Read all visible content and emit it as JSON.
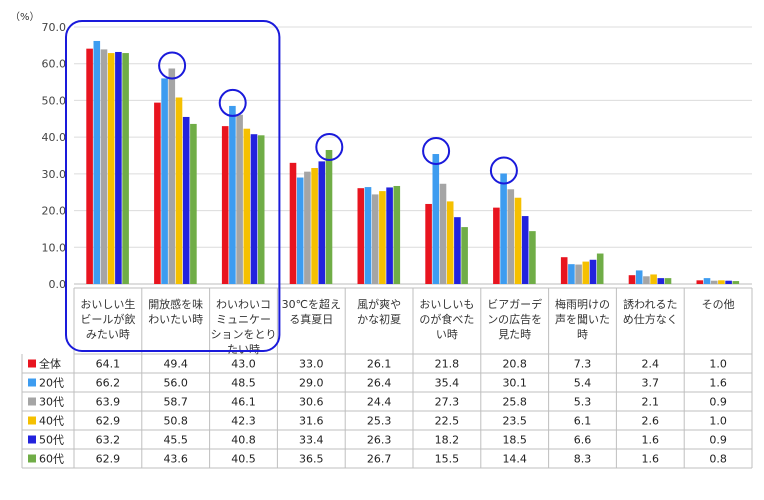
{
  "chart_data": {
    "type": "bar",
    "ylabel": "（%）",
    "ylim": [
      0,
      70
    ],
    "yticks": [
      "0.0",
      "10.0",
      "20.0",
      "30.0",
      "40.0",
      "50.0",
      "60.0",
      "70.0"
    ],
    "grid": true,
    "legend_placement": "table-left",
    "categories": [
      [
        "おいしい生",
        "ビールが飲",
        "みたい時"
      ],
      [
        "開放感を味",
        "わいたい時"
      ],
      [
        "わいわいコ",
        "ミュニケー",
        "ションをとり",
        "たい時"
      ],
      [
        "30℃を超え",
        "る真夏日"
      ],
      [
        "風が爽や",
        "かな初夏"
      ],
      [
        "おいしいも",
        "のが食べた",
        "い時"
      ],
      [
        "ビアガーデ",
        "ンの広告を",
        "見た時"
      ],
      [
        "梅雨明けの",
        "声を聞いた",
        "時"
      ],
      [
        "誘われるた",
        "め仕方なく"
      ],
      [
        "その他"
      ]
    ],
    "series": [
      {
        "name": "全体",
        "color": "#e8141f",
        "values": [
          64.1,
          49.4,
          43.0,
          33.0,
          26.1,
          21.8,
          20.8,
          7.3,
          2.4,
          1.0
        ]
      },
      {
        "name": "20代",
        "color": "#3d9cf0",
        "values": [
          66.2,
          56.0,
          48.5,
          29.0,
          26.4,
          35.4,
          30.1,
          5.4,
          3.7,
          1.6
        ]
      },
      {
        "name": "30代",
        "color": "#a5a5a5",
        "values": [
          63.9,
          58.7,
          46.1,
          30.6,
          24.4,
          27.3,
          25.8,
          5.3,
          2.1,
          0.9
        ]
      },
      {
        "name": "40代",
        "color": "#f5c000",
        "values": [
          62.9,
          50.8,
          42.3,
          31.6,
          25.3,
          22.5,
          23.5,
          6.1,
          2.6,
          1.0
        ]
      },
      {
        "name": "50代",
        "color": "#2222dd",
        "values": [
          63.2,
          45.5,
          40.8,
          33.4,
          26.3,
          18.2,
          18.5,
          6.6,
          1.6,
          0.9
        ]
      },
      {
        "name": "60代",
        "color": "#70ad47",
        "values": [
          62.9,
          43.6,
          40.5,
          36.5,
          26.7,
          15.5,
          14.4,
          8.3,
          1.6,
          0.8
        ]
      }
    ],
    "table_values": [
      [
        "64.1",
        "49.4",
        "43.0",
        "33.0",
        "26.1",
        "21.8",
        "20.8",
        "7.3",
        "2.4",
        "1.0"
      ],
      [
        "66.2",
        "56.0",
        "48.5",
        "29.0",
        "26.4",
        "35.4",
        "30.1",
        "5.4",
        "3.7",
        "1.6"
      ],
      [
        "63.9",
        "58.7",
        "46.1",
        "30.6",
        "24.4",
        "27.3",
        "25.8",
        "5.3",
        "2.1",
        "0.9"
      ],
      [
        "62.9",
        "50.8",
        "42.3",
        "31.6",
        "25.3",
        "22.5",
        "23.5",
        "6.1",
        "2.6",
        "1.0"
      ],
      [
        "63.2",
        "45.5",
        "40.8",
        "33.4",
        "26.3",
        "18.2",
        "18.5",
        "6.6",
        "1.6",
        "0.9"
      ],
      [
        "62.9",
        "43.6",
        "40.5",
        "36.5",
        "26.7",
        "15.5",
        "14.4",
        "8.3",
        "1.6",
        "0.8"
      ]
    ],
    "highlight": {
      "box_categories": [
        0,
        2
      ],
      "circled": [
        [
          1,
          2
        ],
        [
          2,
          1
        ],
        [
          3,
          5
        ],
        [
          5,
          1
        ],
        [
          6,
          1
        ]
      ],
      "color": "#1a1adb"
    }
  }
}
